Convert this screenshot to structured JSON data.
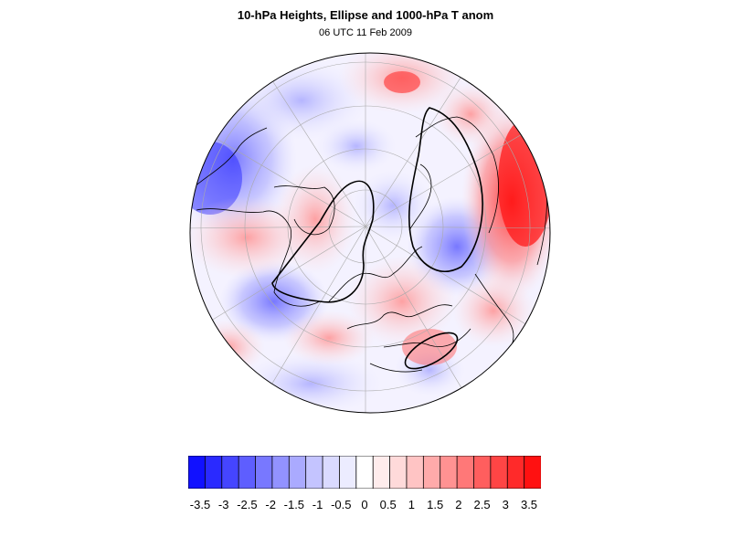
{
  "header": {
    "title": "10-hPa Heights, Ellipse and 1000-hPa T anom",
    "subtitle": "06 UTC 11 Feb 2009"
  },
  "map": {
    "projection": "north polar stereographic",
    "features": [
      "temperature anomaly shading",
      "coastlines",
      "lat/lon graticule",
      "polar vortex ellipse contour",
      "second closed contour (blocking)"
    ]
  },
  "colorbar": {
    "colors": [
      "#1111ff",
      "#2a2aff",
      "#4545ff",
      "#5e5eff",
      "#7878ff",
      "#9292ff",
      "#aaaaff",
      "#c4c4ff",
      "#dadaff",
      "#ececff",
      "#ffffff",
      "#ffecec",
      "#ffdada",
      "#ffc4c4",
      "#ffaaaa",
      "#ff9292",
      "#ff7878",
      "#ff5e5e",
      "#ff4545",
      "#ff2a2a",
      "#ff1111"
    ],
    "tick_labels": [
      "-3.5",
      "-3",
      "-2.5",
      "-2",
      "-1.5",
      "-1",
      "-0.5",
      "0",
      "0.5",
      "1",
      "1.5",
      "2",
      "2.5",
      "3",
      "3.5"
    ]
  }
}
